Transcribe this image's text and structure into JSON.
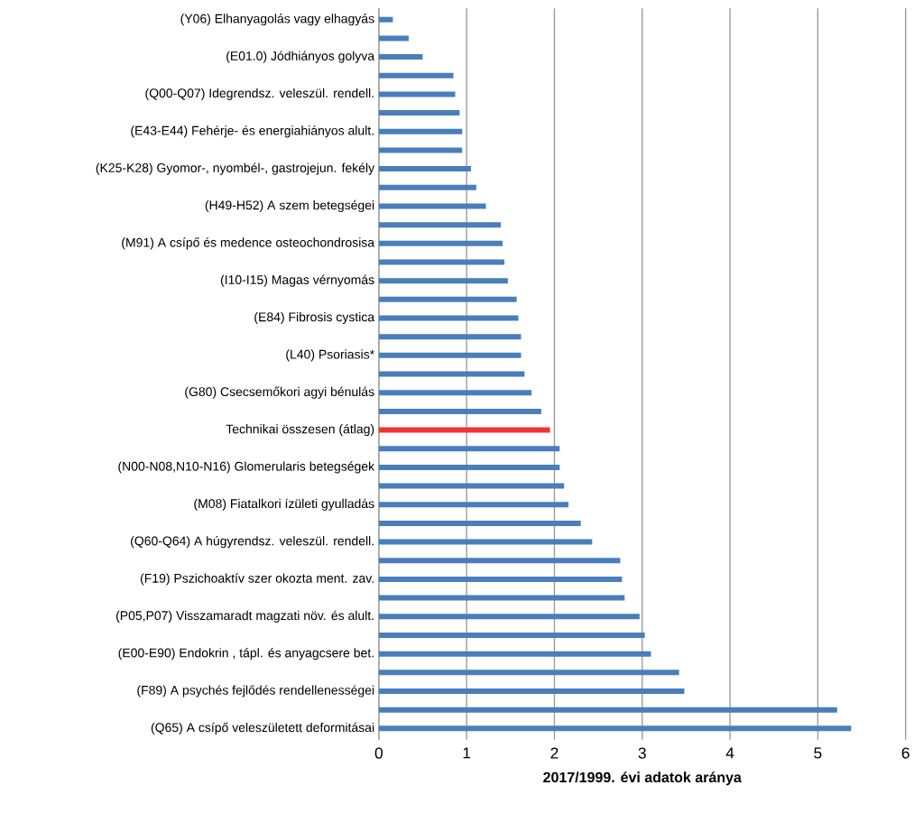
{
  "chart_data": {
    "type": "bar",
    "orientation": "horizontal",
    "xlabel": "2017/1999. évi adatok aránya",
    "categories": [
      "(Y06) Elhanyagolás vagy elhagyás",
      null,
      "(E01.0) Jódhiányos golyva",
      null,
      "(Q00-Q07) Idegrendsz. veleszül. rendell.",
      null,
      "(E43-E44) Fehérje- és energiahiányos alult.",
      null,
      "(K25-K28) Gyomor-, nyombél-, gastrojejun. fekély",
      null,
      "(H49-H52) A szem betegségei",
      null,
      "(M91) A csípő és medence osteochondrosisa",
      null,
      "(I10-I15) Magas vérnyomás",
      null,
      "(E84) Fibrosis cystica",
      null,
      "(L40) Psoriasis*",
      null,
      "(G80) Csecsemőkori agyi bénulás",
      null,
      "Technikai összesen (átlag)",
      null,
      "(N00-N08,N10-N16) Glomerularis betegségek",
      null,
      "(M08) Fiatalkori ízületi gyulladás",
      null,
      "(Q60-Q64) A húgyrendsz. veleszül. rendell.",
      null,
      "(F19) Pszichoaktív szer okozta ment. zav.",
      null,
      "(P05,P07) Visszamaradt magzati növ. és alult.",
      null,
      "(E00-E90) Endokrin , tápl. és anyagcsere bet.",
      null,
      "(F89) A psychés fejlődés rendellenességei",
      null,
      "(Q65) A csípő veleszületett deformitásai"
    ],
    "values": [
      0.16,
      0.34,
      0.5,
      0.85,
      0.87,
      0.92,
      0.95,
      0.95,
      1.05,
      1.11,
      1.22,
      1.39,
      1.41,
      1.43,
      1.47,
      1.57,
      1.59,
      1.62,
      1.62,
      1.66,
      1.74,
      1.85,
      1.95,
      2.06,
      2.06,
      2.11,
      2.16,
      2.3,
      2.43,
      2.75,
      2.77,
      2.8,
      2.97,
      3.03,
      3.1,
      3.42,
      3.48,
      5.22,
      5.38
    ],
    "colors": [
      "#4a7ebb",
      "#4a7ebb",
      "#4a7ebb",
      "#4a7ebb",
      "#4a7ebb",
      "#4a7ebb",
      "#4a7ebb",
      "#4a7ebb",
      "#4a7ebb",
      "#4a7ebb",
      "#4a7ebb",
      "#4a7ebb",
      "#4a7ebb",
      "#4a7ebb",
      "#4a7ebb",
      "#4a7ebb",
      "#4a7ebb",
      "#4a7ebb",
      "#4a7ebb",
      "#4a7ebb",
      "#4a7ebb",
      "#4a7ebb",
      "#ee3333",
      "#4a7ebb",
      "#4a7ebb",
      "#4a7ebb",
      "#4a7ebb",
      "#4a7ebb",
      "#4a7ebb",
      "#4a7ebb",
      "#4a7ebb",
      "#4a7ebb",
      "#4a7ebb",
      "#4a7ebb",
      "#4a7ebb",
      "#4a7ebb",
      "#4a7ebb",
      "#4a7ebb",
      "#4a7ebb"
    ],
    "xlim": [
      0,
      6
    ],
    "xticks": [
      0,
      1,
      2,
      3,
      4,
      5,
      6
    ],
    "grid": "x"
  }
}
